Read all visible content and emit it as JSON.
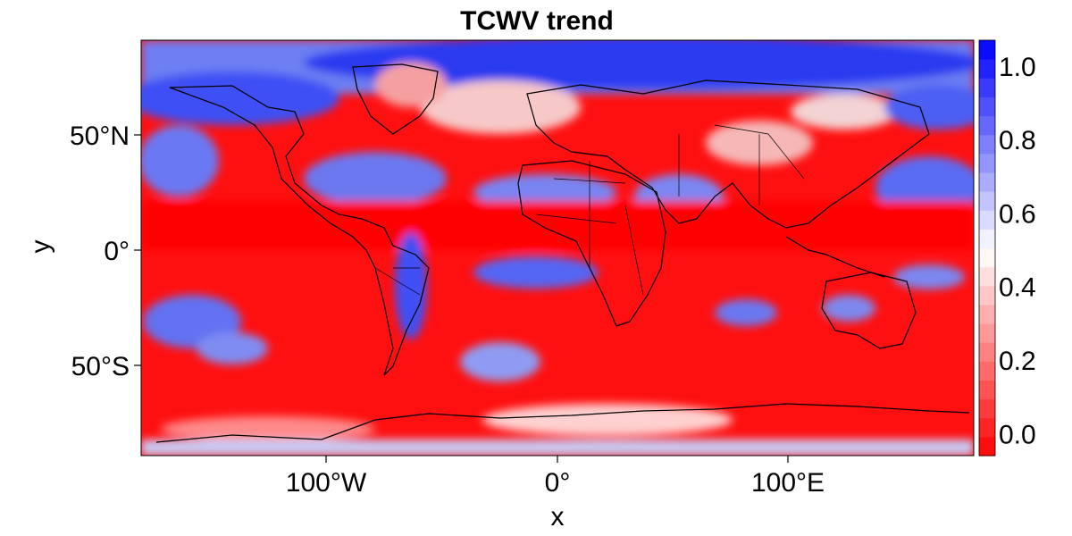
{
  "title": "TCWV trend",
  "xlabel": "x",
  "ylabel": "y",
  "x_ticks": [
    {
      "value": -100,
      "label": "100°W"
    },
    {
      "value": 0,
      "label": "0°"
    },
    {
      "value": 100,
      "label": "100°E"
    }
  ],
  "y_ticks": [
    {
      "value": 50,
      "label": "50°N"
    },
    {
      "value": 0,
      "label": "0°"
    },
    {
      "value": -50,
      "label": "50°S"
    }
  ],
  "colorbar": {
    "ticks": [
      "0.0",
      "0.2",
      "0.4",
      "0.6",
      "0.8",
      "1.0"
    ],
    "range": [
      -0.06,
      1.07
    ],
    "colors": {
      "low": "#ff0000",
      "mid": "#ffffff",
      "high": "#0000ff"
    }
  },
  "chart_data": {
    "type": "heatmap",
    "title": "TCWV trend",
    "xlabel": "x",
    "ylabel": "y",
    "xlim": [
      -180,
      180
    ],
    "ylim": [
      -90,
      90
    ],
    "value_range": [
      -0.06,
      1.07
    ],
    "colormap": "red-white-blue",
    "description": "Global gridded field with coastlines and national borders overlaid"
  }
}
